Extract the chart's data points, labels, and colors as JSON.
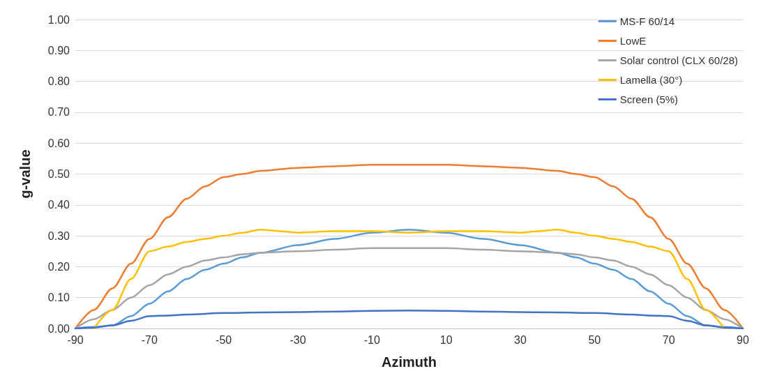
{
  "chart_data": {
    "type": "line",
    "xlabel": "Azimuth",
    "ylabel": "g-value",
    "xlim": [
      -90,
      90
    ],
    "xticks": [
      -90,
      -70,
      -50,
      -30,
      -10,
      10,
      30,
      50,
      70,
      90
    ],
    "ylim": [
      0,
      1
    ],
    "yticks": [
      {
        "value": 0,
        "label": "0.00"
      },
      {
        "value": 0.1,
        "label": "0.10"
      },
      {
        "value": 0.2,
        "label": "0.20"
      },
      {
        "value": 0.3,
        "label": "0.30"
      },
      {
        "value": 0.4,
        "label": "0.40"
      },
      {
        "value": 0.5,
        "label": "0.50"
      },
      {
        "value": 0.6,
        "label": "0.60"
      },
      {
        "value": 0.7,
        "label": "0.70"
      },
      {
        "value": 0.8,
        "label": "0.80"
      },
      {
        "value": 0.9,
        "label": "0.90"
      },
      {
        "value": 1,
        "label": "1.00"
      }
    ],
    "grid": "y",
    "legend": "top right",
    "marker": "none",
    "line_style": "solid",
    "series": [
      {
        "name": "MS-F 60/14",
        "color": "#5b9bd5",
        "x": [
          -90,
          -85,
          -80,
          -75,
          -70,
          -65,
          -60,
          -55,
          -50,
          -45,
          -40,
          -30,
          -20,
          -10,
          0,
          10,
          20,
          30,
          40,
          45,
          50,
          55,
          60,
          65,
          70,
          75,
          80,
          85,
          90
        ],
        "values": [
          0,
          0.005,
          0.01,
          0.04,
          0.08,
          0.12,
          0.16,
          0.19,
          0.21,
          0.23,
          0.245,
          0.27,
          0.29,
          0.31,
          0.32,
          0.31,
          0.29,
          0.27,
          0.245,
          0.23,
          0.21,
          0.19,
          0.16,
          0.12,
          0.08,
          0.04,
          0.01,
          0.005,
          0
        ]
      },
      {
        "name": "LowE",
        "color": "#ed7d31",
        "x": [
          -90,
          -85,
          -80,
          -75,
          -70,
          -65,
          -60,
          -55,
          -50,
          -45,
          -40,
          -30,
          -20,
          -10,
          0,
          10,
          20,
          30,
          40,
          45,
          50,
          55,
          60,
          65,
          70,
          75,
          80,
          85,
          90
        ],
        "values": [
          0,
          0.06,
          0.13,
          0.21,
          0.29,
          0.36,
          0.42,
          0.46,
          0.49,
          0.5,
          0.51,
          0.52,
          0.525,
          0.53,
          0.53,
          0.53,
          0.525,
          0.52,
          0.51,
          0.5,
          0.49,
          0.46,
          0.42,
          0.36,
          0.29,
          0.21,
          0.13,
          0.06,
          0
        ]
      },
      {
        "name": "Solar control (CLX 60/28)",
        "color": "#a5a5a5",
        "x": [
          -90,
          -85,
          -80,
          -75,
          -70,
          -65,
          -60,
          -55,
          -50,
          -45,
          -40,
          -30,
          -20,
          -10,
          0,
          10,
          20,
          30,
          40,
          45,
          50,
          55,
          60,
          65,
          70,
          75,
          80,
          85,
          90
        ],
        "values": [
          0,
          0.03,
          0.06,
          0.1,
          0.14,
          0.175,
          0.2,
          0.22,
          0.23,
          0.24,
          0.245,
          0.25,
          0.255,
          0.26,
          0.26,
          0.26,
          0.255,
          0.25,
          0.245,
          0.24,
          0.23,
          0.22,
          0.2,
          0.175,
          0.14,
          0.1,
          0.06,
          0.03,
          0
        ]
      },
      {
        "name": "Lamella (30°)",
        "color": "#ffc000",
        "x": [
          -85,
          -80,
          -75,
          -70,
          -65,
          -60,
          -55,
          -50,
          -45,
          -40,
          -35,
          -30,
          -20,
          -10,
          0,
          10,
          20,
          30,
          35,
          40,
          45,
          50,
          55,
          60,
          65,
          70,
          75,
          80,
          85
        ],
        "values": [
          0,
          0.06,
          0.16,
          0.25,
          0.265,
          0.28,
          0.29,
          0.3,
          0.31,
          0.32,
          0.315,
          0.31,
          0.315,
          0.315,
          0.31,
          0.315,
          0.315,
          0.31,
          0.315,
          0.32,
          0.31,
          0.3,
          0.29,
          0.28,
          0.265,
          0.25,
          0.16,
          0.06,
          0
        ]
      },
      {
        "name": "Screen (5%)",
        "color": "#4472c4",
        "x": [
          -90,
          -85,
          -80,
          -75,
          -70,
          -65,
          -60,
          -50,
          -40,
          -30,
          -20,
          -10,
          0,
          10,
          20,
          30,
          40,
          50,
          60,
          65,
          70,
          75,
          80,
          85,
          90
        ],
        "values": [
          0,
          0.003,
          0.01,
          0.025,
          0.04,
          0.042,
          0.045,
          0.05,
          0.052,
          0.053,
          0.055,
          0.057,
          0.058,
          0.057,
          0.055,
          0.053,
          0.052,
          0.05,
          0.045,
          0.042,
          0.04,
          0.025,
          0.01,
          0.003,
          0
        ]
      }
    ]
  }
}
